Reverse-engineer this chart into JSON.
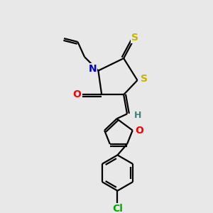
{
  "bg_color": "#e8e8e8",
  "atom_colors": {
    "S": "#c8b400",
    "N": "#0000cc",
    "O": "#ff0000",
    "Cl": "#00aa00",
    "C": "#000000",
    "H": "#408080"
  },
  "bond_color": "#000000",
  "line_width": 1.6,
  "figsize": [
    3.0,
    3.0
  ],
  "dpi": 100
}
